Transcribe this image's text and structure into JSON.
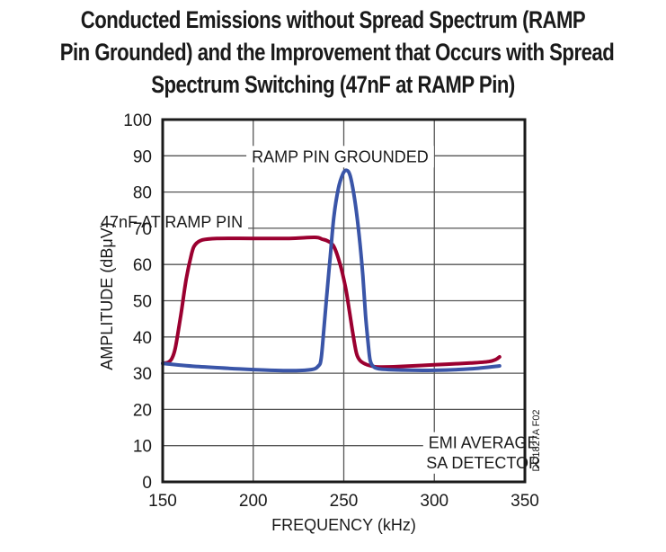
{
  "chart_data": {
    "type": "line",
    "title_lines": [
      "Conducted Emissions without Spread Spectrum (RAMP",
      "Pin Grounded) and the Improvement that Occurs with Spread",
      "Spectrum Switching (47nF at RAMP Pin)"
    ],
    "xlabel": "FREQUENCY (kHz)",
    "ylabel": "AMPLITUDE (dBμV)",
    "xlim": [
      150,
      350
    ],
    "ylim": [
      0,
      100
    ],
    "xticks": [
      150,
      200,
      250,
      300,
      350
    ],
    "yticks": [
      0,
      10,
      20,
      30,
      40,
      50,
      60,
      70,
      80,
      90,
      100
    ],
    "grid": true,
    "series": [
      {
        "name": "RAMP PIN GROUNDED",
        "color": "#3a55a8",
        "x": [
          150,
          170,
          200,
          220,
          232,
          236,
          237.5,
          239,
          240.5,
          242.5,
          244.5,
          247,
          249.5,
          251.5,
          253.5,
          256,
          258.5,
          260.5,
          262,
          263.5,
          264.5,
          266,
          269.5,
          280,
          300,
          320,
          336
        ],
        "y": [
          32.7,
          31.8,
          31.0,
          30.7,
          31.0,
          32.0,
          34.0,
          42.0,
          51.0,
          62.0,
          73.0,
          81.0,
          85.0,
          86.0,
          84.5,
          78.0,
          68.0,
          57.0,
          46.0,
          38.0,
          33.7,
          32.0,
          31.2,
          30.9,
          30.8,
          31.2,
          32.0
        ]
      },
      {
        "name": "47nF AT RAMP PIN",
        "color": "#9b0030",
        "x": [
          150,
          153,
          155,
          157,
          160,
          163,
          166,
          168,
          172,
          180,
          200,
          220,
          234,
          238,
          241,
          244.5,
          248,
          251,
          253,
          255,
          257,
          259,
          262,
          266,
          269.5,
          280,
          300,
          320,
          330,
          334,
          336
        ],
        "y": [
          32.7,
          33.0,
          34.0,
          37.0,
          46.0,
          56.0,
          63.0,
          65.5,
          66.8,
          67.2,
          67.2,
          67.2,
          67.5,
          67.0,
          66.5,
          65.0,
          60.0,
          53.6,
          47.5,
          41.0,
          35.5,
          33.5,
          32.5,
          31.9,
          31.7,
          31.8,
          32.3,
          32.8,
          33.2,
          33.8,
          34.5
        ]
      }
    ],
    "annotations": [
      {
        "text": "RAMP PIN GROUNDED",
        "x": 248,
        "y": 90
      },
      {
        "text": "47nF AT RAMP PIN",
        "x": 155,
        "y": 72
      },
      {
        "text": "EMI AVERAGE",
        "x": 327,
        "y": 11
      },
      {
        "text": "SA DETECTOR",
        "x": 327,
        "y": 5.5
      }
    ],
    "figure_id": "DC1827A F02"
  }
}
